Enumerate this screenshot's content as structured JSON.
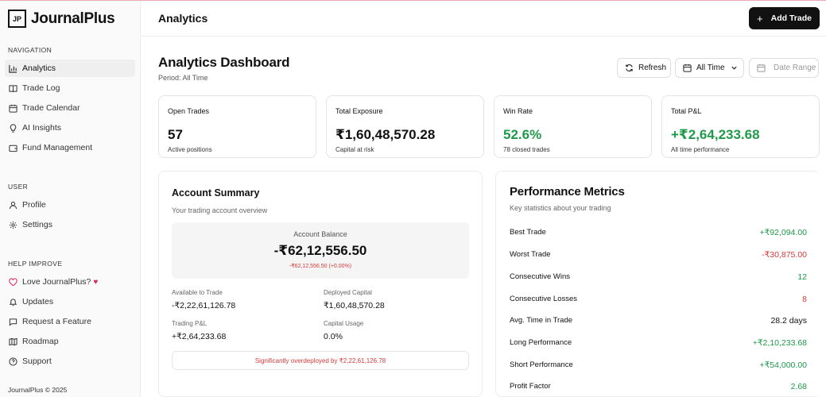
{
  "app": {
    "logo_mark": "JP",
    "name": "JournalPlus"
  },
  "sidebar": {
    "sections": [
      {
        "title": "NAVIGATION",
        "items": [
          {
            "label": "Analytics",
            "icon": "bar-chart-icon",
            "active": true
          },
          {
            "label": "Trade Log",
            "icon": "book-icon"
          },
          {
            "label": "Trade Calendar",
            "icon": "calendar-icon"
          },
          {
            "label": "AI Insights",
            "icon": "lightbulb-icon"
          },
          {
            "label": "Fund Management",
            "icon": "wallet-icon"
          }
        ]
      },
      {
        "title": "USER",
        "items": [
          {
            "label": "Profile",
            "icon": "user-icon"
          },
          {
            "label": "Settings",
            "icon": "gear-icon"
          }
        ]
      },
      {
        "title": "HELP IMPROVE",
        "items": [
          {
            "label": "Love JournalPlus?",
            "icon": "heart-icon"
          },
          {
            "label": "Updates",
            "icon": "bell-icon"
          },
          {
            "label": "Request a Feature",
            "icon": "message-icon"
          },
          {
            "label": "Roadmap",
            "icon": "map-icon"
          },
          {
            "label": "Support",
            "icon": "help-circle-icon"
          }
        ]
      }
    ],
    "copyright": "JournalPlus © 2025"
  },
  "header": {
    "title": "Analytics",
    "add_trade_label": "Add Trade"
  },
  "dashboard": {
    "title": "Analytics Dashboard",
    "period": "Period: All Time",
    "refresh_label": "Refresh",
    "time_filter": "All Time",
    "date_range_placeholder": "Date Range"
  },
  "stats": [
    {
      "label": "Open Trades",
      "value": "57",
      "sub": "Active positions",
      "color": "#111111"
    },
    {
      "label": "Total Exposure",
      "value": "₹1,60,48,570.28",
      "sub": "Capital at risk",
      "color": "#111111"
    },
    {
      "label": "Win Rate",
      "value": "52.6%",
      "sub": "78 closed trades",
      "color": "#1f9a4a"
    },
    {
      "label": "Total P&L",
      "value": "+₹2,64,233.68",
      "sub": "All time performance",
      "color": "#1f9a4a"
    }
  ],
  "account_summary": {
    "title": "Account Summary",
    "subtitle": "Your trading account overview",
    "balance_label": "Account Balance",
    "balance_value": "-₹62,12,556.50",
    "balance_change": "-₹62,12,556.50 (+0.00%)",
    "available_label": "Available to Trade",
    "available_value": "-₹2,22,61,126.78",
    "deployed_label": "Deployed Capital",
    "deployed_value": "₹1,60,48,570.28",
    "pnl_label": "Trading P&L",
    "pnl_value": "+₹2,64,233.68",
    "usage_label": "Capital Usage",
    "usage_value": "0.0%",
    "warning": "Significantly overdeployed by ₹2,22,61,126.78"
  },
  "performance": {
    "title": "Performance Metrics",
    "subtitle": "Key statistics about your trading",
    "metrics": [
      {
        "label": "Best Trade",
        "value": "+₹92,094.00",
        "color": "#1f9a4a"
      },
      {
        "label": "Worst Trade",
        "value": "-₹30,875.00",
        "color": "#d63a3a"
      },
      {
        "label": "Consecutive Wins",
        "value": "12",
        "color": "#1f9a4a"
      },
      {
        "label": "Consecutive Losses",
        "value": "8",
        "color": "#d63a3a"
      },
      {
        "label": "Avg. Time in Trade",
        "value": "28.2 days",
        "color": "#111111"
      },
      {
        "label": "Long Performance",
        "value": "+₹2,10,233.68",
        "color": "#1f9a4a"
      },
      {
        "label": "Short Performance",
        "value": "+₹54,000.00",
        "color": "#1f9a4a"
      },
      {
        "label": "Profit Factor",
        "value": "2.68",
        "color": "#1f9a4a"
      }
    ]
  }
}
